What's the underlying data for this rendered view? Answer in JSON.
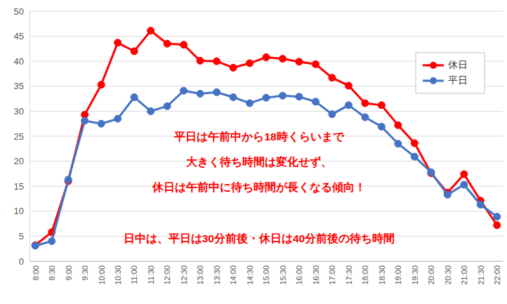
{
  "chart_data": {
    "type": "line",
    "categories": [
      "8:00",
      "8:30",
      "9:00",
      "9:30",
      "10:00",
      "10:30",
      "11:00",
      "11:30",
      "12:00",
      "12:30",
      "13:00",
      "13:30",
      "14:00",
      "14:30",
      "15:00",
      "15:30",
      "16:00",
      "16:30",
      "17:00",
      "17:30",
      "18:00",
      "18:30",
      "19:00",
      "19:30",
      "20:00",
      "20:30",
      "21:00",
      "21:30",
      "22:00"
    ],
    "series": [
      {
        "name": "休日",
        "color": "#ff0000",
        "marker": "circle",
        "values": [
          3.2,
          5.8,
          16,
          29.3,
          35.3,
          43.7,
          42,
          46.1,
          43.5,
          43.3,
          40.1,
          40,
          38.7,
          39.6,
          40.8,
          40.5,
          39.9,
          39.4,
          36.7,
          35.1,
          31.6,
          31.2,
          27.2,
          23.6,
          17.6,
          13.7,
          17.4,
          12.1,
          7.2
        ]
      },
      {
        "name": "平日",
        "color": "#4472c4",
        "marker": "circle",
        "values": [
          3.1,
          4.0,
          16.3,
          28.1,
          27.5,
          28.5,
          32.8,
          30.0,
          31.0,
          34.1,
          33.5,
          33.8,
          32.8,
          31.6,
          32.7,
          33.1,
          32.9,
          31.9,
          29.4,
          31.2,
          28.8,
          26.9,
          23.5,
          20.9,
          17.8,
          13.3,
          15.3,
          11.3,
          8.9
        ]
      }
    ],
    "ylim": [
      0,
      50
    ],
    "yticks": [
      0,
      5,
      10,
      15,
      20,
      25,
      30,
      35,
      40,
      45,
      50
    ],
    "grid": true,
    "legend": "right",
    "annotations": [
      "平日は午前中から18時くらいまで",
      "大きく待ち時間は変化せず、",
      "休日は午前中に待ち時間が長くなる傾向！",
      "日中は、平日は30分前後・休日は40分前後の待ち時間"
    ]
  }
}
